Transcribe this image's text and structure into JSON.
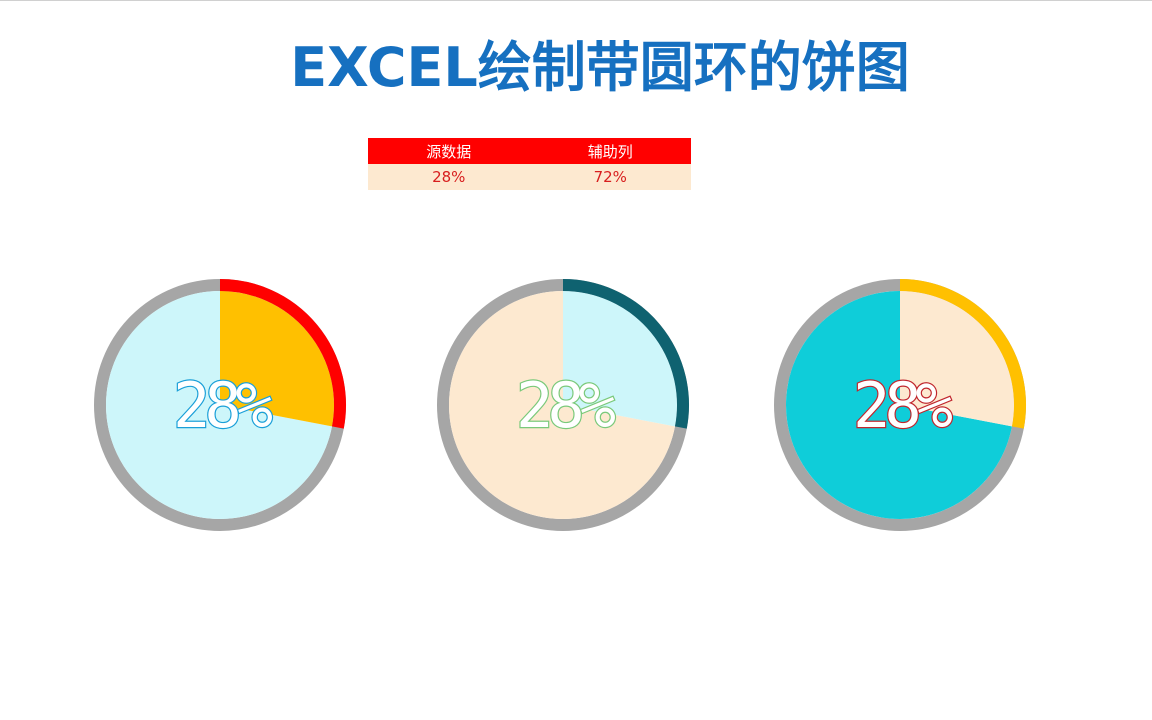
{
  "title": "EXCEL绘制带圆环的饼图",
  "table": {
    "headers": [
      "源数据",
      "辅助列"
    ],
    "values": [
      "28%",
      "72%"
    ]
  },
  "colors": {
    "title": "#1670c0",
    "table_header_bg": "#ff0000",
    "table_value_bg": "#fde9d0",
    "table_value_text": "#d81e1e",
    "ring_base": "#a6a6a6"
  },
  "chart_data": [
    {
      "type": "pie",
      "source_value": 0.28,
      "helper_value": 0.72,
      "label": "28%",
      "slice_colors": [
        "#ffc000",
        "#cdf6fa"
      ],
      "ring_color": "#a6a6a6",
      "ring_highlight": "#ff0000",
      "label_stroke": "#1a9fd8"
    },
    {
      "type": "pie",
      "source_value": 0.28,
      "helper_value": 0.72,
      "label": "28%",
      "slice_colors": [
        "#cdf6fa",
        "#fde9d0"
      ],
      "ring_color": "#a6a6a6",
      "ring_highlight": "#0f6270",
      "label_stroke": "#7ac97a"
    },
    {
      "type": "pie",
      "source_value": 0.28,
      "helper_value": 0.72,
      "label": "28%",
      "slice_colors": [
        "#fde9d0",
        "#0fcdd9"
      ],
      "ring_color": "#a6a6a6",
      "ring_highlight": "#ffc000",
      "label_stroke": "#c0262d"
    }
  ]
}
